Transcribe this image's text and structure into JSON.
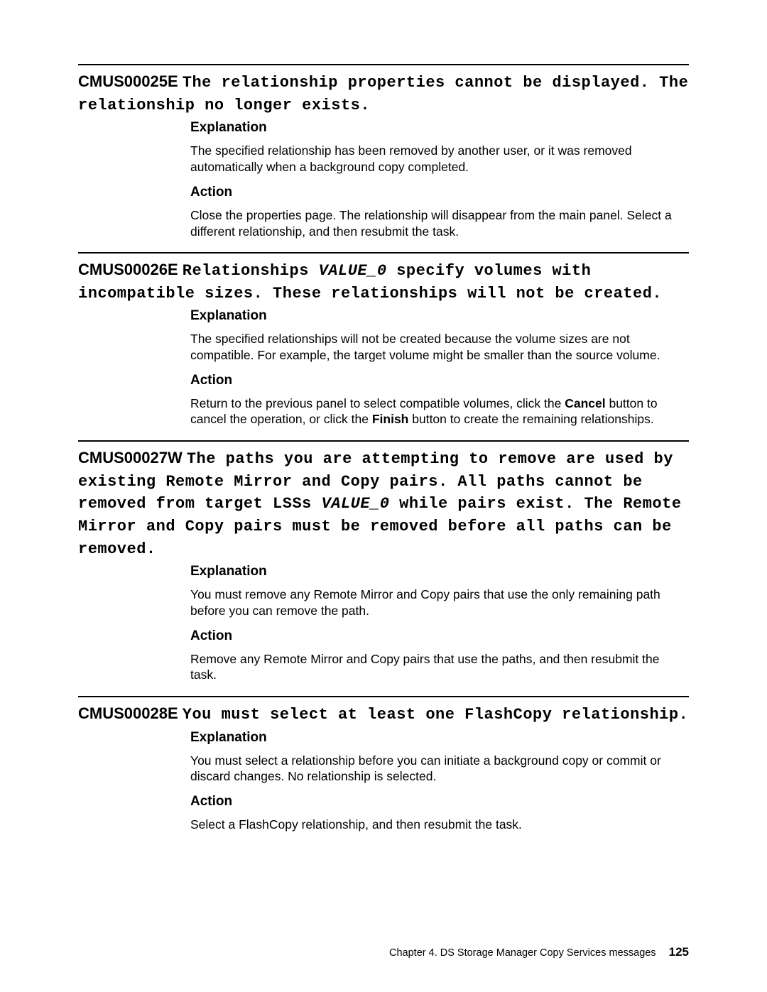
{
  "messages": [
    {
      "code": "CMUS00025E",
      "title_segments": [
        {
          "text": "The relationship properties cannot be displayed. The relationship no longer exists.",
          "style": "mono"
        }
      ],
      "explanation_label": "Explanation",
      "explanation": "The specified relationship has been removed by another user, or it was removed automatically when a background copy completed.",
      "action_label": "Action",
      "action_html": "Close the properties page. The relationship will disappear from the main panel. Select a different relationship, and then resubmit the task."
    },
    {
      "code": "CMUS00026E",
      "title_segments": [
        {
          "text": "Relationships ",
          "style": "mono"
        },
        {
          "text": "VALUE_0",
          "style": "mono ital"
        },
        {
          "text": " specify volumes with incompatible sizes. These relationships will not be created.",
          "style": "mono"
        }
      ],
      "explanation_label": "Explanation",
      "explanation": "The specified relationships will not be created because the volume sizes are not compatible. For example, the target volume might be smaller than the source volume.",
      "action_label": "Action",
      "action_html": "Return to the previous panel to select compatible volumes, click the <b>Cancel</b> button to cancel the operation, or click the <b>Finish</b> button to create the remaining relationships."
    },
    {
      "code": "CMUS00027W",
      "title_segments": [
        {
          "text": "The paths you are attempting to remove are used by existing Remote Mirror and Copy pairs. All paths cannot be removed from target LSSs ",
          "style": "mono"
        },
        {
          "text": "VALUE_0",
          "style": "mono ital"
        },
        {
          "text": " while pairs exist. The Remote Mirror and Copy pairs must be removed before all paths can be removed.",
          "style": "mono"
        }
      ],
      "explanation_label": "Explanation",
      "explanation": "You must remove any Remote Mirror and Copy pairs that use the only remaining path before you can remove the path.",
      "action_label": "Action",
      "action_html": "Remove any Remote Mirror and Copy pairs that use the paths, and then resubmit the task."
    },
    {
      "code": "CMUS00028E",
      "title_segments": [
        {
          "text": "You must select at least one FlashCopy relationship.",
          "style": "mono"
        }
      ],
      "explanation_label": "Explanation",
      "explanation": "You must select a relationship before you can initiate a background copy or commit or discard changes. No relationship is selected.",
      "action_label": "Action",
      "action_html": "Select a FlashCopy relationship, and then resubmit the task."
    }
  ],
  "footer": {
    "chapter": "Chapter 4. DS Storage Manager Copy Services messages",
    "page": "125"
  }
}
